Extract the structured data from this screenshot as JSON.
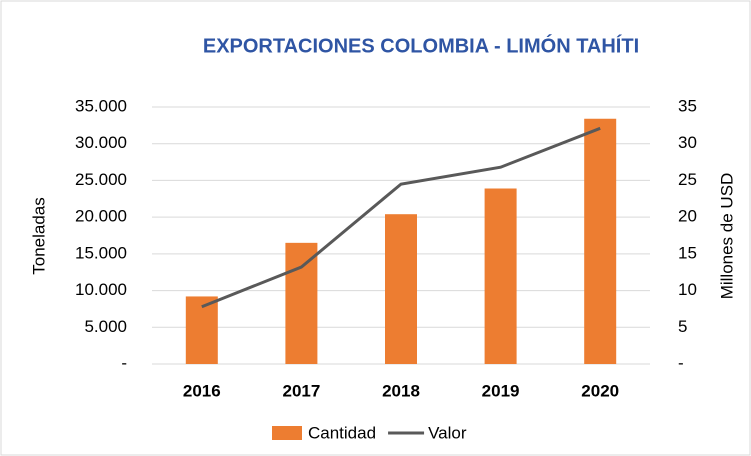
{
  "chart_data": {
    "type": "bar",
    "title": "EXPORTACIONES COLOMBIA - LIMÓN TAHÍTI",
    "y_label": "Toneladas",
    "y2_label": "Millones de USD",
    "categories": [
      "2016",
      "2017",
      "2018",
      "2019",
      "2020"
    ],
    "series": [
      {
        "name": "Cantidad",
        "type": "bar",
        "color": "#ed7d31",
        "values": [
          9200,
          16500,
          20400,
          23900,
          33400
        ]
      },
      {
        "name": "Valor",
        "type": "line",
        "axis": "y2",
        "color": "#595959",
        "values": [
          7.8,
          13.2,
          24.5,
          26.8,
          32.1
        ]
      }
    ],
    "ylim": [
      0,
      35000
    ],
    "yticks": [
      {
        "value": 0,
        "label": "-"
      },
      {
        "value": 5000,
        "label": "5.000"
      },
      {
        "value": 10000,
        "label": "10.000"
      },
      {
        "value": 15000,
        "label": "15.000"
      },
      {
        "value": 20000,
        "label": "20.000"
      },
      {
        "value": 25000,
        "label": "25.000"
      },
      {
        "value": 30000,
        "label": "30.000"
      },
      {
        "value": 35000,
        "label": "35.000"
      }
    ],
    "y2lim": [
      0,
      35
    ],
    "y2ticks": [
      {
        "value": 0,
        "label": "-"
      },
      5,
      10,
      15,
      20,
      25,
      30,
      35
    ],
    "grid": true,
    "legend": "bottom"
  }
}
